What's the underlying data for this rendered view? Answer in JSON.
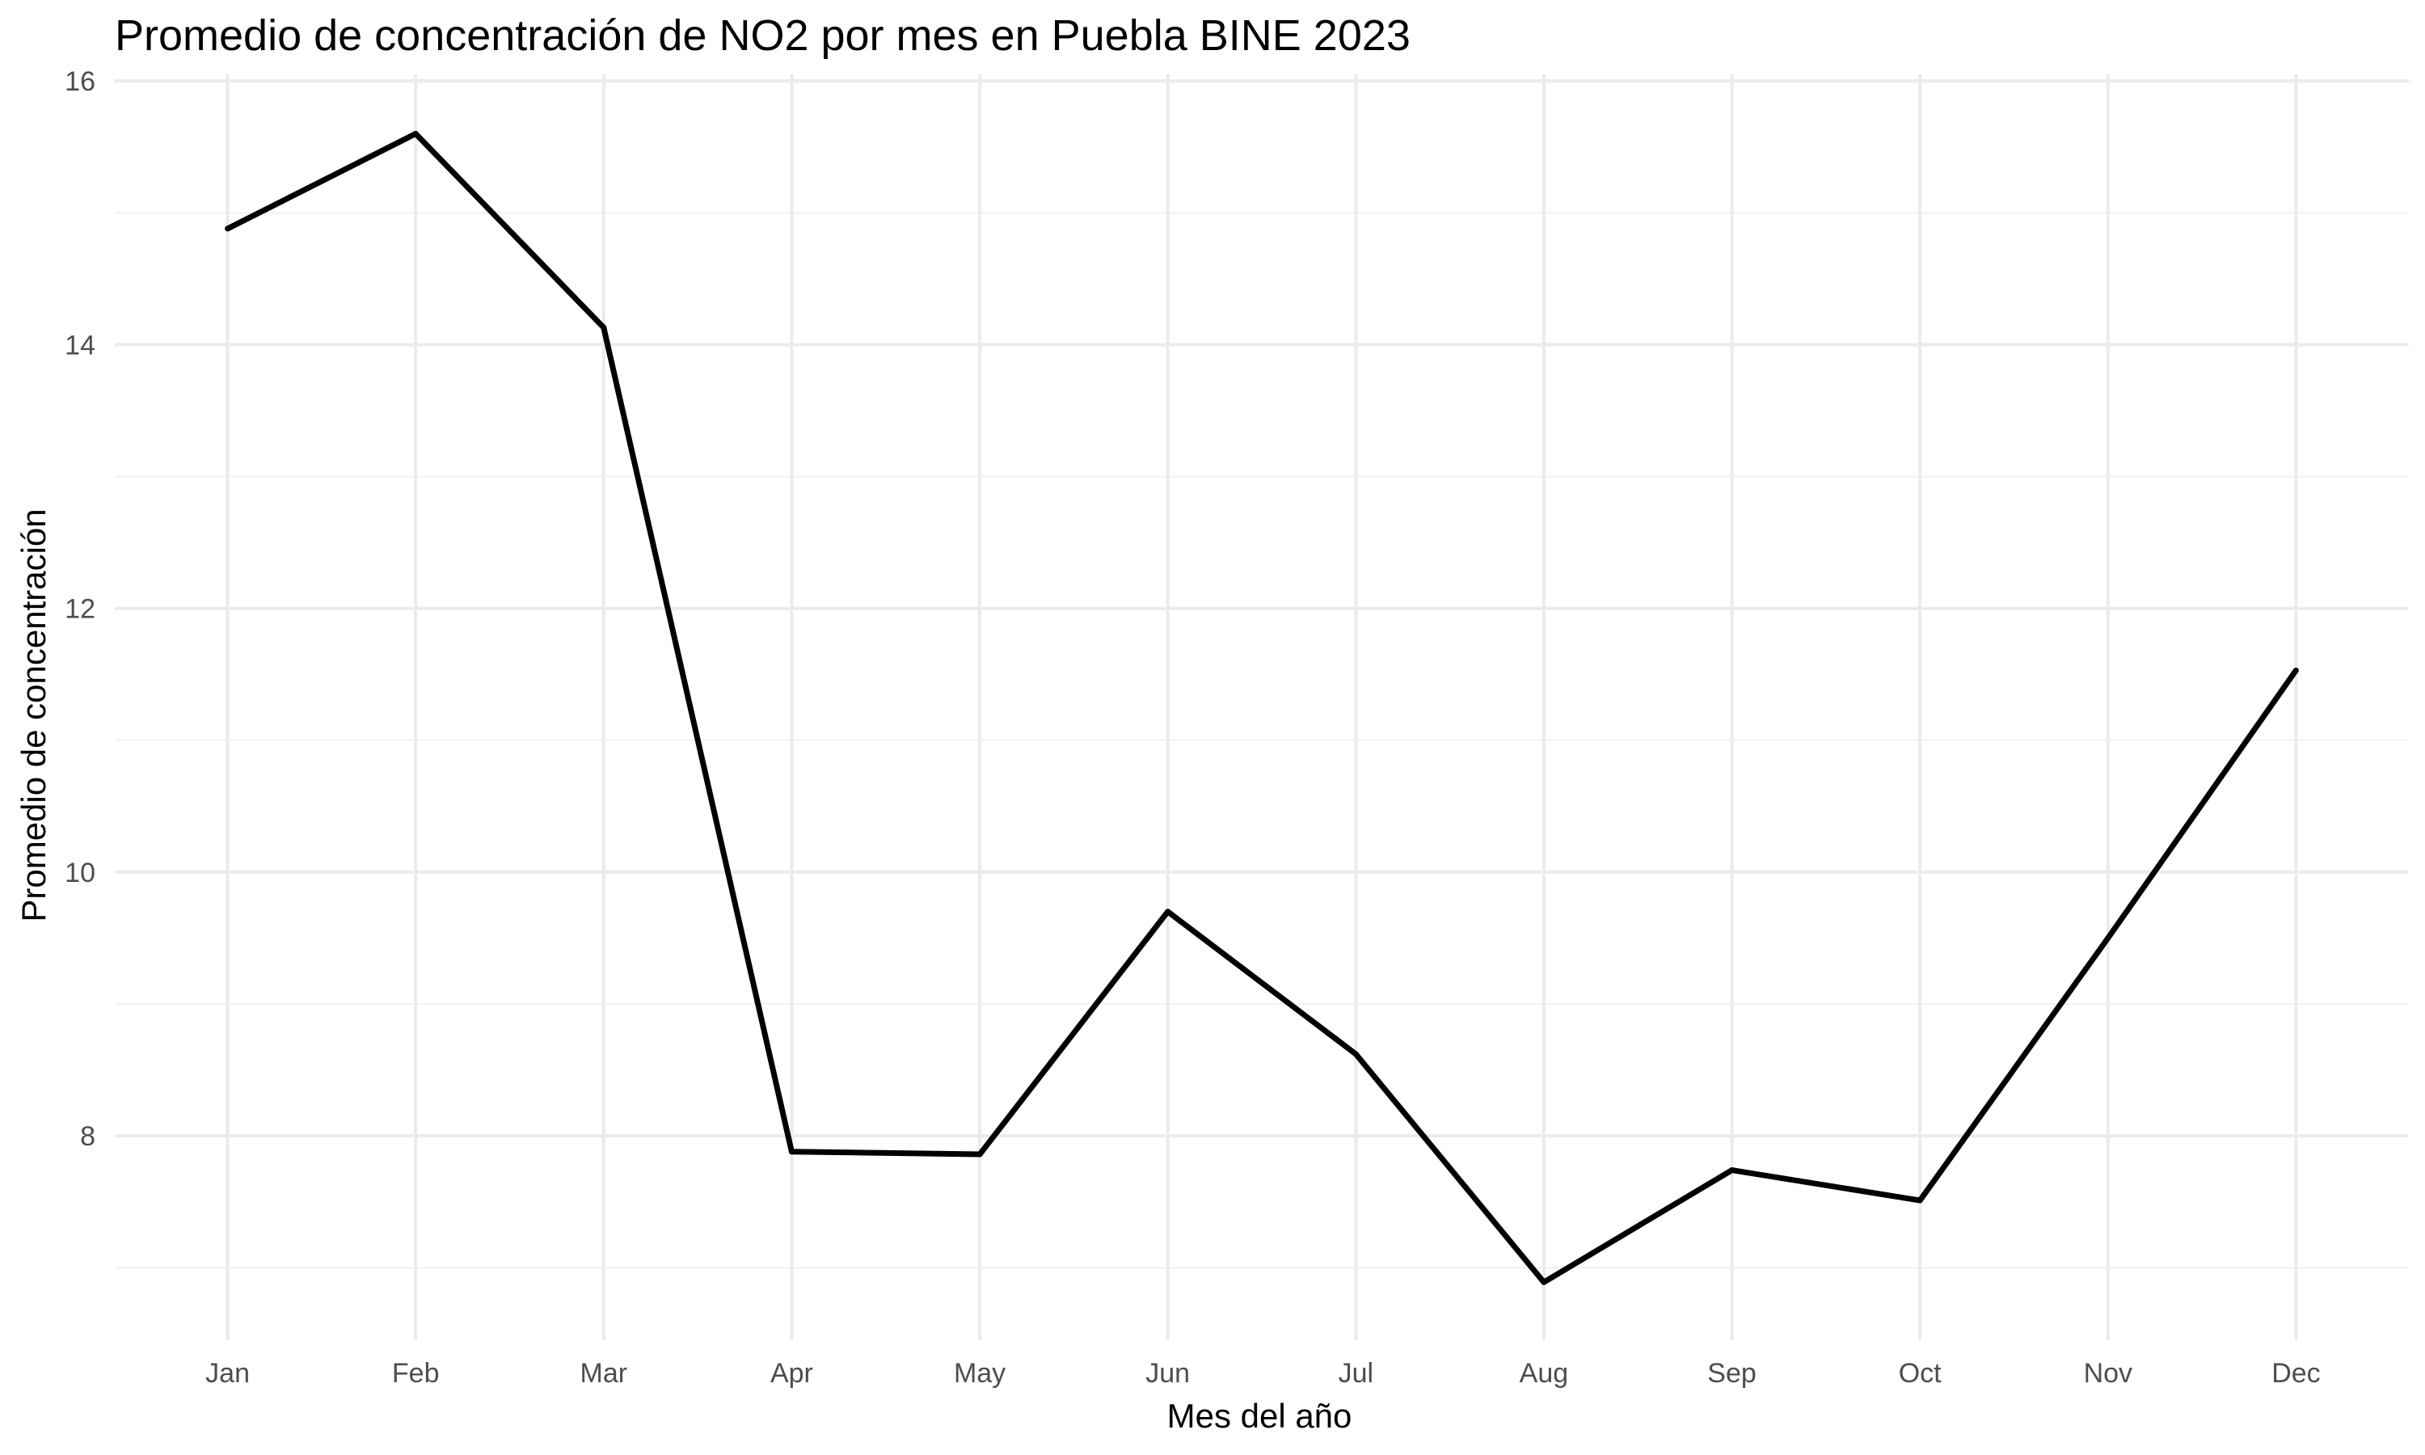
{
  "chart_data": {
    "type": "line",
    "title": "Promedio de concentración de NO2 por mes en Puebla BINE 2023",
    "xlabel": "Mes del año",
    "ylabel": "Promedio de concentración",
    "categories": [
      "Jan",
      "Feb",
      "Mar",
      "Apr",
      "May",
      "Jun",
      "Jul",
      "Aug",
      "Sep",
      "Oct",
      "Nov",
      "Dec"
    ],
    "series": [
      {
        "values": [
          14.88,
          15.6,
          14.13,
          7.88,
          7.86,
          9.7,
          8.62,
          6.89,
          7.74,
          7.51,
          9.5,
          11.53
        ],
        "color": "#000000"
      }
    ],
    "ylim": [
      6.45,
      16.05
    ],
    "yticks": [
      8,
      10,
      12,
      14,
      16
    ],
    "yminor": [
      7,
      9,
      11,
      13,
      15
    ],
    "grid": true,
    "legend": "none",
    "background": "#ffffff"
  }
}
